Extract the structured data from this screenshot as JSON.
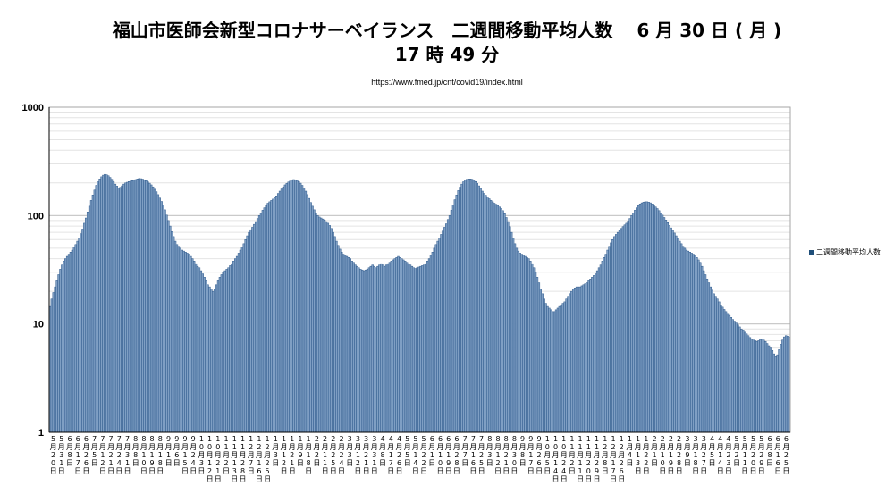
{
  "header": {
    "title_line1": "福山市医師会新型コロナサーベイランス　二週間移動平均人数　 6 月 30 日 ( 月 )",
    "title_line2": "17 時 49 分",
    "source_url": "https://www.fmed.jp/cnt/covid19/index.html"
  },
  "chart_data": {
    "type": "bar",
    "scale": "log",
    "ylim": [
      1,
      1000
    ],
    "y_ticks": [
      "1",
      "10",
      "100",
      "1000"
    ],
    "grid": true,
    "legend_position": "right",
    "bar_color": "#7f9fc4",
    "bar_edge_color": "#2f5a8c",
    "series": [
      {
        "name": "二週間移動平均人数"
      }
    ],
    "x_tick_labels": [
      "5月20日",
      "5月31日",
      "6月8日",
      "6月17日",
      "6月26日",
      "7月5日",
      "7月12日",
      "7月21日",
      "7月24日",
      "7月31日",
      "8月8日",
      "8月10日",
      "8月19日",
      "8月18日",
      "9月1日",
      "9月6日",
      "9月15日",
      "9月24日",
      "10月3日",
      "10月12日",
      "10月21日",
      "11月2日",
      "11月13日",
      "11月28日",
      "12月7日",
      "12月16日",
      "12月25日",
      "1月3日",
      "1月12日",
      "1月21日",
      "1月9日",
      "1月18日",
      "2月2日",
      "2月11日",
      "2月25日",
      "2月24日",
      "3月3日",
      "3月12日",
      "3月21日",
      "3月31日",
      "4月8日",
      "4月17日",
      "4月26日",
      "5月5日",
      "5月14日",
      "5月22日",
      "6月1日",
      "6月10日",
      "6月19日",
      "6月28日",
      "7月7日",
      "7月16日",
      "7月25日",
      "8月3日",
      "8月12日",
      "8月21日",
      "8月30日",
      "9月8日",
      "9月17日",
      "9月26日",
      "10月5日",
      "10月14日",
      "10月24日",
      "11月2日",
      "11月11日",
      "11月20日",
      "11月29日",
      "12月8日",
      "12月17日",
      "12月26日",
      "1月4日",
      "1月13日",
      "1月22日",
      "2月1日",
      "2月10日",
      "2月19日",
      "2月28日",
      "3月9日",
      "3月18日",
      "3月27日",
      "4月5日",
      "4月14日",
      "4月23日",
      "5月2日",
      "5月11日",
      "5月20日",
      "5月29日",
      "6月8日",
      "6月16日",
      "6月25日"
    ],
    "values": [
      14.5,
      17.0,
      19.5,
      22.0,
      25.0,
      28.5,
      32.0,
      35.0,
      38.0,
      40.0,
      42.0,
      44.0,
      46.0,
      48.0,
      51.0,
      54.0,
      58.0,
      62.0,
      68.0,
      75.0,
      85.0,
      95.0,
      108.0,
      122.0,
      138.0,
      155.0,
      172.0,
      190.0,
      205.0,
      218.0,
      228.0,
      236.0,
      240.0,
      238.0,
      233.0,
      225.0,
      216.0,
      205.0,
      195.0,
      187.0,
      180.0,
      182.0,
      188.0,
      195.0,
      200.0,
      203.0,
      206.0,
      208.0,
      210.0,
      212.0,
      215.0,
      218.0,
      220.0,
      219.0,
      217.0,
      214.0,
      210.0,
      205.0,
      199.0,
      192.0,
      184.0,
      175.0,
      166.0,
      156.0,
      145.0,
      135.0,
      125.0,
      113.0,
      101.0,
      90.0,
      80.0,
      71.0,
      64.0,
      58.0,
      54.0,
      52.0,
      50.0,
      48.0,
      47.0,
      46.0,
      45.0,
      44.0,
      42.0,
      40.0,
      38.0,
      36.0,
      34.0,
      33.0,
      31.0,
      29.0,
      27.0,
      25.0,
      23.0,
      22.0,
      21.0,
      20.0,
      21.0,
      23.0,
      25.0,
      27.0,
      28.5,
      30.0,
      31.0,
      32.0,
      33.0,
      34.5,
      36.0,
      38.0,
      40.0,
      42.0,
      45.0,
      48.0,
      51.0,
      55.0,
      60.0,
      65.0,
      70.0,
      74.0,
      78.0,
      83.0,
      88.0,
      94.0,
      100.0,
      106.0,
      112.0,
      118.0,
      124.0,
      130.0,
      134.0,
      138.0,
      142.0,
      146.0,
      152.0,
      160.0,
      168.0,
      176.0,
      184.0,
      192.0,
      198.0,
      204.0,
      208.0,
      212.0,
      215.0,
      214.0,
      211.0,
      206.0,
      199.0,
      190.0,
      180.0,
      168.0,
      156.0,
      144.0,
      132.0,
      122.0,
      113.0,
      106.0,
      100.0,
      97.0,
      95.0,
      93.0,
      91.0,
      88.0,
      85.0,
      81.0,
      76.0,
      70.0,
      64.0,
      58.0,
      53.0,
      49.0,
      46.0,
      44.0,
      43.0,
      42.0,
      41.0,
      40.0,
      38.0,
      37.0,
      35.0,
      34.0,
      33.0,
      32.0,
      31.5,
      31.0,
      31.5,
      32.0,
      33.0,
      34.0,
      35.0,
      34.0,
      33.0,
      34.0,
      35.0,
      36.0,
      35.0,
      34.0,
      35.0,
      36.0,
      37.0,
      38.0,
      39.0,
      40.0,
      41.0,
      42.0,
      41.0,
      40.0,
      39.0,
      38.0,
      37.0,
      36.0,
      35.0,
      34.0,
      33.0,
      32.5,
      33.0,
      33.5,
      34.0,
      34.5,
      35.0,
      36.0,
      38.0,
      40.0,
      43.0,
      46.0,
      50.0,
      54.0,
      58.0,
      62.0,
      67.0,
      72.0,
      78.0,
      84.0,
      92.0,
      100.0,
      112.0,
      125.0,
      140.0,
      155.0,
      170.0,
      183.0,
      195.0,
      205.0,
      212.0,
      216.0,
      218.0,
      218.0,
      216.0,
      212.0,
      206.0,
      198.0,
      188.0,
      178.0,
      168.0,
      160.0,
      154.0,
      148.0,
      143.0,
      138.0,
      134.0,
      130.0,
      127.0,
      124.0,
      120.0,
      116.0,
      111.0,
      104.0,
      96.0,
      88.0,
      79.0,
      70.0,
      62.0,
      55.0,
      50.0,
      47.0,
      45.0,
      44.0,
      43.0,
      42.0,
      41.0,
      40.0,
      38.0,
      36.0,
      33.0,
      30.0,
      27.0,
      24.0,
      21.0,
      19.0,
      17.0,
      15.5,
      14.5,
      14.0,
      13.5,
      13.0,
      13.0,
      13.5,
      14.0,
      14.5,
      15.0,
      15.5,
      16.0,
      17.0,
      18.0,
      19.0,
      20.0,
      21.0,
      21.5,
      22.0,
      22.0,
      22.0,
      22.5,
      23.0,
      23.5,
      24.0,
      25.0,
      26.0,
      27.0,
      28.0,
      29.0,
      31.0,
      33.0,
      35.0,
      38.0,
      41.0,
      44.0,
      48.0,
      52.0,
      56.0,
      60.0,
      64.0,
      67.0,
      70.0,
      73.0,
      76.0,
      79.0,
      82.0,
      85.0,
      89.0,
      94.0,
      100.0,
      106.0,
      112.0,
      118.0,
      124.0,
      128.0,
      131.0,
      133.0,
      134.0,
      134.0,
      133.0,
      131.0,
      128.0,
      124.0,
      120.0,
      116.0,
      111.0,
      106.0,
      101.0,
      96.0,
      91.0,
      86.0,
      81.0,
      77.0,
      73.0,
      69.0,
      65.0,
      62.0,
      58.0,
      55.0,
      52.0,
      50.0,
      48.0,
      47.0,
      46.0,
      45.0,
      44.0,
      43.0,
      41.0,
      39.0,
      37.0,
      34.0,
      31.0,
      28.5,
      26.0,
      24.0,
      22.0,
      20.5,
      19.0,
      18.0,
      17.0,
      16.0,
      15.0,
      14.3,
      13.6,
      13.0,
      12.5,
      12.0,
      11.5,
      11.0,
      10.6,
      10.2,
      9.8,
      9.4,
      9.0,
      8.7,
      8.4,
      8.1,
      7.8,
      7.5,
      7.3,
      7.1,
      7.0,
      6.9,
      7.0,
      7.2,
      7.3,
      7.1,
      6.9,
      6.6,
      6.3,
      6.0,
      5.7,
      5.3,
      5.0,
      5.2,
      5.8,
      6.5,
      7.1,
      7.6,
      7.8,
      7.7,
      7.6
    ]
  }
}
